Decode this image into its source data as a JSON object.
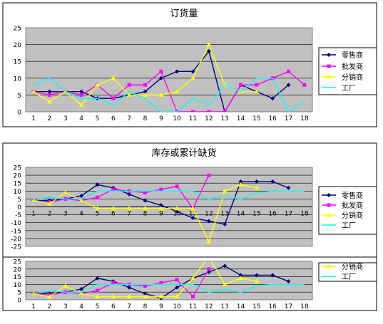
{
  "chart_data": [
    {
      "type": "line",
      "title": "订货量",
      "x": [
        1,
        2,
        3,
        4,
        5,
        6,
        7,
        8,
        9,
        10,
        11,
        12,
        13,
        14,
        15,
        16,
        17,
        18
      ],
      "ylim": [
        0,
        25
      ],
      "yticks": [
        0,
        5,
        10,
        15,
        20,
        25
      ],
      "grid": true,
      "legend_position": "right",
      "series": [
        {
          "name": "零售商",
          "color": "#000080",
          "marker": "diamond",
          "values": [
            6,
            6,
            6,
            6,
            4,
            4,
            5,
            6,
            10,
            12,
            12,
            18,
            0,
            8,
            6,
            4,
            8,
            null
          ]
        },
        {
          "name": "批发商",
          "color": "#FF00FF",
          "marker": "square",
          "values": [
            6,
            5,
            6,
            5,
            8,
            4,
            8,
            8,
            12,
            0,
            0,
            0,
            0,
            8,
            8,
            10,
            12,
            8
          ]
        },
        {
          "name": "分销商",
          "color": "#FFFF00",
          "marker": "triangle",
          "values": [
            6,
            3,
            6,
            2,
            8,
            10,
            5,
            5,
            5,
            6,
            10,
            20,
            8,
            6,
            6,
            null,
            null,
            null
          ]
        },
        {
          "name": "工厂",
          "color": "#00FFFF",
          "marker": "none",
          "values": [
            8,
            10,
            6,
            4,
            4,
            2,
            6,
            4,
            0,
            0,
            4,
            2,
            8,
            6,
            10,
            10,
            0,
            3
          ]
        }
      ]
    },
    {
      "type": "line",
      "title": "库存或累计缺货",
      "x": [
        1,
        2,
        3,
        4,
        5,
        6,
        7,
        8,
        9,
        10,
        11,
        12,
        13,
        14,
        15,
        16,
        17,
        18
      ],
      "ylim": [
        -25,
        25
      ],
      "yticks": [
        -25,
        -20,
        -15,
        -10,
        -5,
        0,
        5,
        10,
        15,
        20,
        25
      ],
      "grid": true,
      "legend_position": "right",
      "series": [
        {
          "name": "零售商",
          "color": "#000080",
          "marker": "diamond",
          "values": [
            4,
            4,
            5,
            7,
            14,
            12,
            8,
            4,
            1,
            -3,
            -7,
            -9,
            -11,
            16,
            16,
            16,
            12,
            null
          ]
        },
        {
          "name": "批发商",
          "color": "#FF00FF",
          "marker": "square",
          "values": [
            4,
            3,
            5,
            4,
            6,
            11,
            10,
            9,
            11,
            13,
            -1,
            20,
            null,
            null,
            null,
            null,
            null,
            null
          ]
        },
        {
          "name": "分销商",
          "color": "#FFFF00",
          "marker": "triangle",
          "values": [
            4,
            2,
            9,
            4,
            -1,
            -1,
            -1,
            -1,
            -1,
            -1,
            -1,
            -22,
            10,
            14,
            12,
            null,
            null,
            null
          ]
        },
        {
          "name": "工厂",
          "color": "#00FFFF",
          "marker": "none",
          "values": [
            4,
            6,
            5,
            5,
            10,
            10,
            10,
            10,
            10,
            10,
            10,
            5,
            7,
            5,
            9,
            10,
            10,
            10
          ]
        }
      ]
    },
    {
      "type": "line",
      "title": "",
      "x": [
        1,
        2,
        3,
        4,
        5,
        6,
        7,
        8,
        9,
        10,
        11,
        12,
        13,
        14,
        15,
        16,
        17,
        18
      ],
      "ylim": [
        0,
        25
      ],
      "yticks": [
        0,
        5,
        10,
        15,
        20,
        25
      ],
      "grid": true,
      "legend_position": "right",
      "partial": true,
      "series": [
        {
          "name": "零售商",
          "color": "#000080",
          "marker": "diamond",
          "values": [
            4,
            4,
            5,
            7,
            14,
            12,
            8,
            4,
            1,
            8,
            14,
            18,
            22,
            16,
            16,
            16,
            12,
            null
          ]
        },
        {
          "name": "批发商",
          "color": "#FF00FF",
          "marker": "square",
          "values": [
            4,
            3,
            5,
            4,
            6,
            11,
            10,
            9,
            11,
            13,
            2,
            20,
            null,
            null,
            null,
            null,
            null,
            null
          ]
        },
        {
          "name": "分销商",
          "color": "#FFFF00",
          "marker": "triangle",
          "values": [
            4,
            2,
            9,
            4,
            2,
            2,
            2,
            2,
            2,
            2,
            14,
            28,
            10,
            14,
            12,
            null,
            null,
            null
          ]
        },
        {
          "name": "工厂",
          "color": "#00FFFF",
          "marker": "none",
          "values": [
            4,
            6,
            5,
            5,
            10,
            10,
            10,
            10,
            10,
            10,
            10,
            5,
            7,
            5,
            9,
            10,
            10,
            10
          ]
        }
      ]
    }
  ]
}
